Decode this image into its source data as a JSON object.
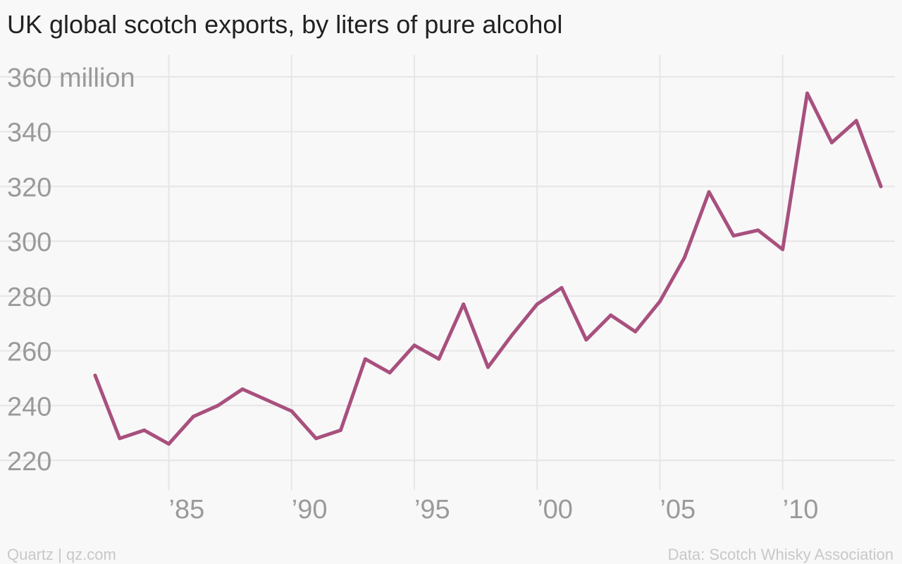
{
  "title": "UK global scotch exports, by liters of pure alcohol",
  "footer": {
    "left": "Quartz | qz.com",
    "right": "Data: Scotch Whisky Association"
  },
  "colors": {
    "line": "#a8507e",
    "grid": "#e6e6e6",
    "tick_label": "#9a9a9a",
    "background": "#f8f8f8"
  },
  "chart_data": {
    "type": "line",
    "title": "UK global scotch exports, by liters of pure alcohol",
    "xlabel": "",
    "ylabel": "",
    "xlim": [
      1981.2,
      2014.5
    ],
    "ylim": [
      213,
      367
    ],
    "x_ticks": [
      1985,
      1990,
      1995,
      2000,
      2005,
      2010
    ],
    "x_tick_labels": [
      "’85",
      "’90",
      "’95",
      "’00",
      "’05",
      "’10"
    ],
    "y_ticks": [
      220,
      240,
      260,
      280,
      300,
      320,
      340,
      360
    ],
    "y_tick_labels": [
      "220",
      "240",
      "260",
      "280",
      "300",
      "320",
      "340",
      "360 million"
    ],
    "grid": true,
    "legend": "none",
    "series": [
      {
        "x": [
          1982,
          1983,
          1984,
          1985,
          1986,
          1987,
          1988,
          1989,
          1990,
          1991,
          1992,
          1993,
          1994,
          1995,
          1996,
          1997,
          1998,
          1999,
          2000,
          2001,
          2002,
          2003,
          2004,
          2005,
          2006,
          2007,
          2008,
          2009,
          2010,
          2011,
          2012,
          2013,
          2014
        ],
        "values": [
          251,
          228,
          231,
          226,
          236,
          240,
          246,
          242,
          238,
          228,
          231,
          257,
          252,
          262,
          257,
          277,
          254,
          266,
          277,
          283,
          264,
          273,
          267,
          278,
          294,
          318,
          302,
          304,
          297,
          354,
          336,
          344,
          320
        ]
      }
    ]
  }
}
